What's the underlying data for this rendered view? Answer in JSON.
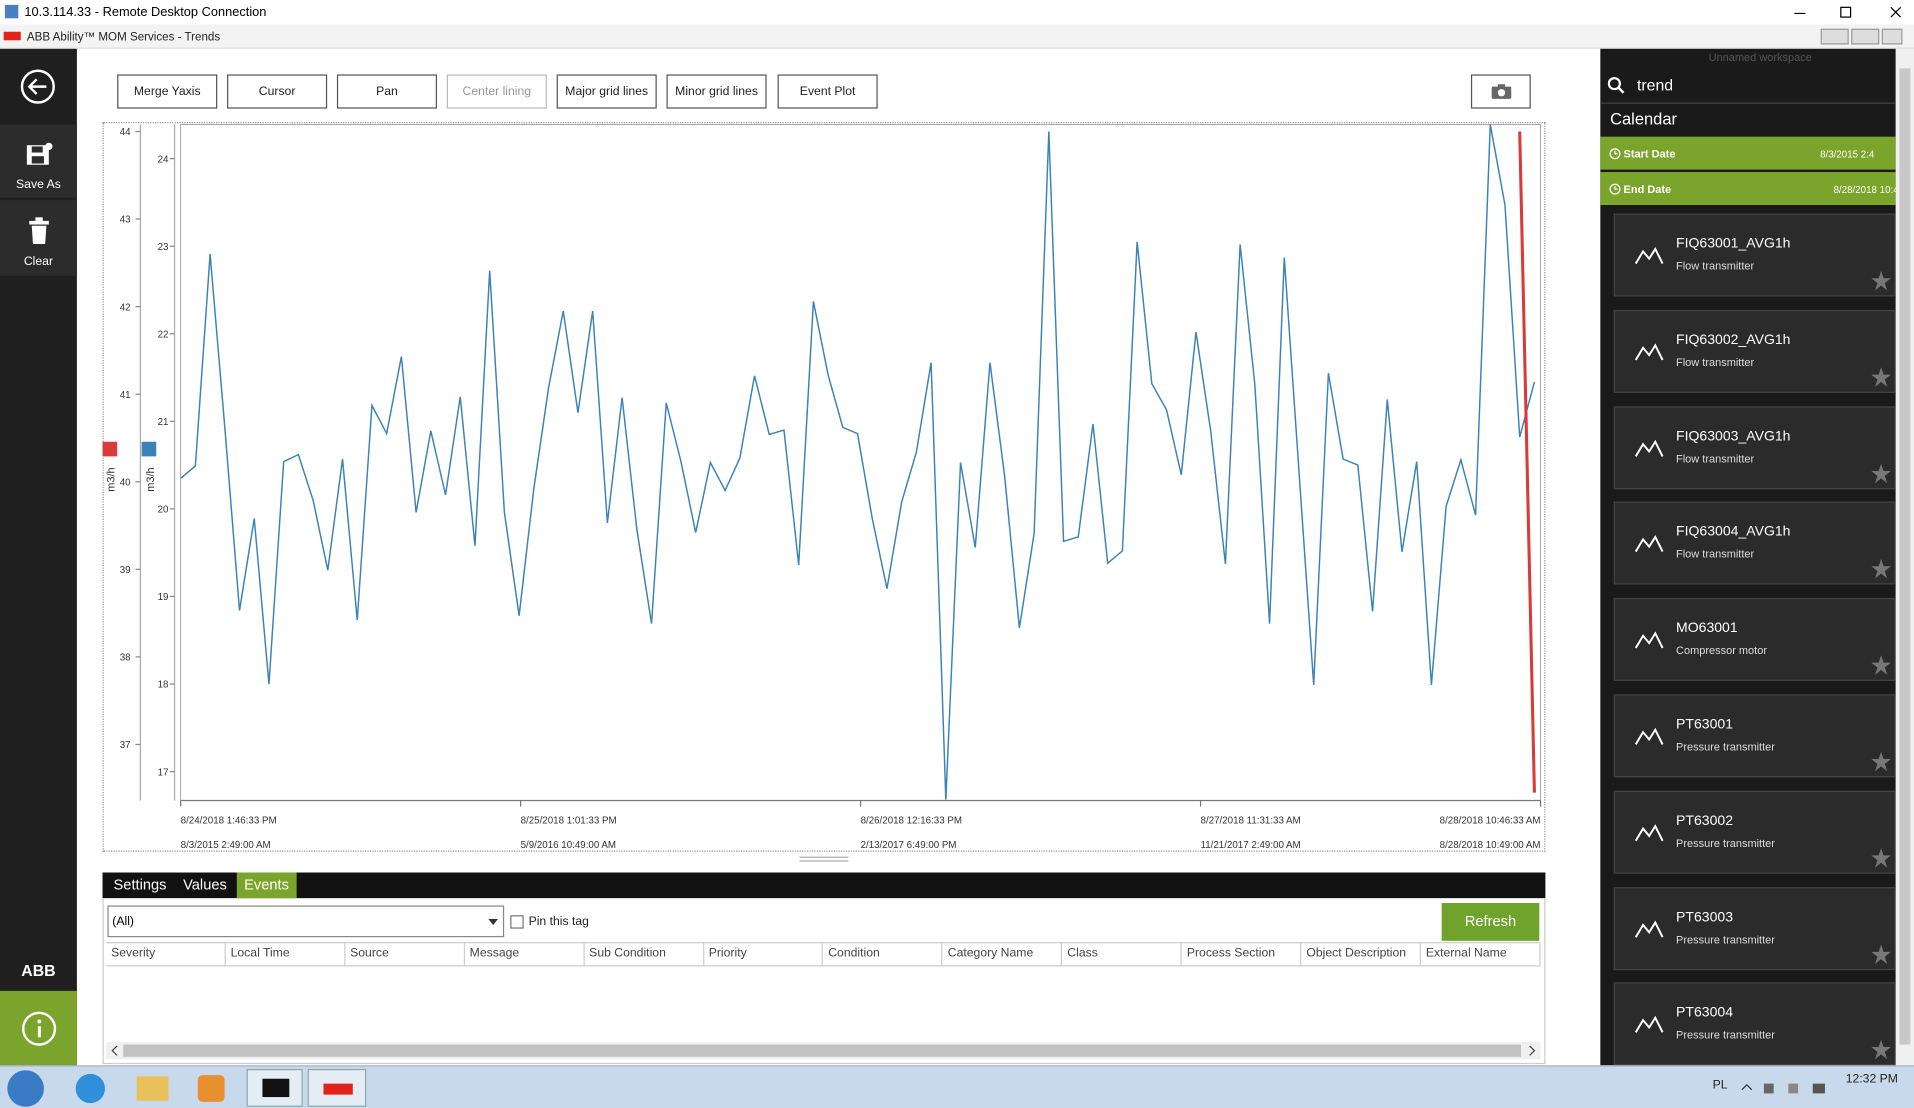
{
  "window": {
    "title": "10.3.114.33 - Remote Desktop Connection"
  },
  "app": {
    "title": "ABB Ability™ MOM Services - Trends"
  },
  "left_nav": {
    "items": [
      "Save As",
      "Clear"
    ],
    "brand": "ABB"
  },
  "toolbar": {
    "buttons": [
      "Merge Yaxis",
      "Cursor",
      "Pan",
      "Center lining",
      "Major grid lines",
      "Minor grid lines",
      "Event Plot"
    ]
  },
  "chart_data": {
    "type": "line",
    "ylim": [
      16.67,
      24.39
    ],
    "yticks": [
      17,
      18,
      19,
      20,
      21,
      22,
      23,
      24
    ],
    "y2lim": [
      36.36,
      44.08
    ],
    "y2ticks": [
      37,
      38,
      39,
      40,
      41,
      42,
      43,
      44
    ],
    "y_label": "m3/h",
    "y2_label": "m3/h",
    "x_tick_labels": [
      "8/24/2018 1:46:33 PM",
      "8/25/2018 1:01:33 PM",
      "8/26/2018 12:16:33 PM",
      "8/27/2018 11:31:33 AM",
      "8/28/2018 10:46:33 AM"
    ],
    "x2_tick_labels": [
      "8/3/2015 2:49:00 AM",
      "5/9/2016 10:49:00 AM",
      "2/13/2017 6:49:00 PM",
      "11/21/2017 2:49:00 AM",
      "8/28/2018 10:49:00 AM"
    ],
    "series": [
      {
        "color": "#3a82b8",
        "values": [
          20.35,
          20.49,
          22.91,
          20.93,
          18.84,
          19.89,
          18.0,
          20.54,
          20.62,
          20.1,
          19.3,
          20.57,
          18.73,
          21.18,
          20.86,
          21.74,
          19.96,
          20.89,
          20.16,
          21.28,
          19.58,
          22.72,
          19.96,
          18.78,
          20.23,
          21.38,
          22.26,
          21.1,
          22.26,
          19.84,
          21.27,
          19.77,
          18.69,
          21.21,
          20.54,
          19.73,
          20.53,
          20.21,
          20.58,
          21.52,
          20.85,
          20.9,
          19.36,
          22.37,
          21.53,
          20.93,
          20.86,
          19.89,
          19.09,
          20.08,
          20.65,
          21.67,
          16.68,
          20.53,
          19.56,
          21.67,
          20.37,
          18.64,
          19.72,
          24.31,
          19.63,
          19.68,
          20.97,
          19.38,
          19.52,
          23.05,
          21.43,
          21.13,
          20.39,
          22.02,
          20.89,
          19.37,
          23.02,
          21.42,
          18.69,
          22.87,
          20.43,
          17.99,
          21.55,
          20.57,
          20.5,
          18.83,
          21.25,
          19.51,
          20.54,
          17.99,
          20.03,
          20.56,
          19.93,
          24.39,
          23.47,
          20.82,
          21.45
        ]
      },
      {
        "color": "#d93a3a",
        "axis": "y2",
        "values": [
          null,
          null,
          null,
          null,
          null,
          null,
          null,
          null,
          null,
          null,
          null,
          null,
          null,
          null,
          null,
          null,
          null,
          null,
          null,
          null,
          null,
          null,
          null,
          null,
          null,
          null,
          null,
          null,
          null,
          null,
          null,
          null,
          null,
          null,
          null,
          null,
          null,
          null,
          null,
          null,
          null,
          null,
          null,
          null,
          null,
          null,
          null,
          null,
          null,
          null,
          null,
          null,
          null,
          null,
          null,
          null,
          null,
          null,
          null,
          null,
          null,
          null,
          null,
          null,
          null,
          null,
          null,
          null,
          null,
          null,
          null,
          null,
          null,
          null,
          null,
          null,
          null,
          null,
          null,
          null,
          null,
          null,
          null,
          null,
          null,
          null,
          null,
          null,
          null,
          null,
          null,
          44.0,
          36.45
        ]
      }
    ]
  },
  "bottom_panel": {
    "tabs": [
      "Settings",
      "Values",
      "Events"
    ],
    "filter": "(All)",
    "pin_label": "Pin this tag",
    "refresh": "Refresh",
    "columns": [
      "Severity",
      "Local Time",
      "Source",
      "Message",
      "Sub Condition",
      "Priority",
      "Condition",
      "Category Name",
      "Class",
      "Process Section",
      "Object Description",
      "External Name"
    ]
  },
  "sidebar": {
    "workspace": "Unnamed workspace",
    "search": "trend",
    "section": "Calendar",
    "start_date": {
      "label": "Start Date",
      "value": "8/3/2015 2:4"
    },
    "end_date": {
      "label": "End Date",
      "value": "8/28/2018 10:4"
    },
    "tags": [
      {
        "name": "FIQ63001_AVG1h",
        "desc": "Flow transmitter"
      },
      {
        "name": "FIQ63002_AVG1h",
        "desc": "Flow transmitter"
      },
      {
        "name": "FIQ63003_AVG1h",
        "desc": "Flow transmitter"
      },
      {
        "name": "FIQ63004_AVG1h",
        "desc": "Flow transmitter"
      },
      {
        "name": "MO63001",
        "desc": "Compressor motor"
      },
      {
        "name": "PT63001",
        "desc": "Pressure transmitter"
      },
      {
        "name": "PT63002",
        "desc": "Pressure transmitter"
      },
      {
        "name": "PT63003",
        "desc": "Pressure transmitter"
      },
      {
        "name": "PT63004",
        "desc": "Pressure transmitter"
      }
    ]
  },
  "taskbar": {
    "language": "PL",
    "time": "12:32 PM"
  }
}
